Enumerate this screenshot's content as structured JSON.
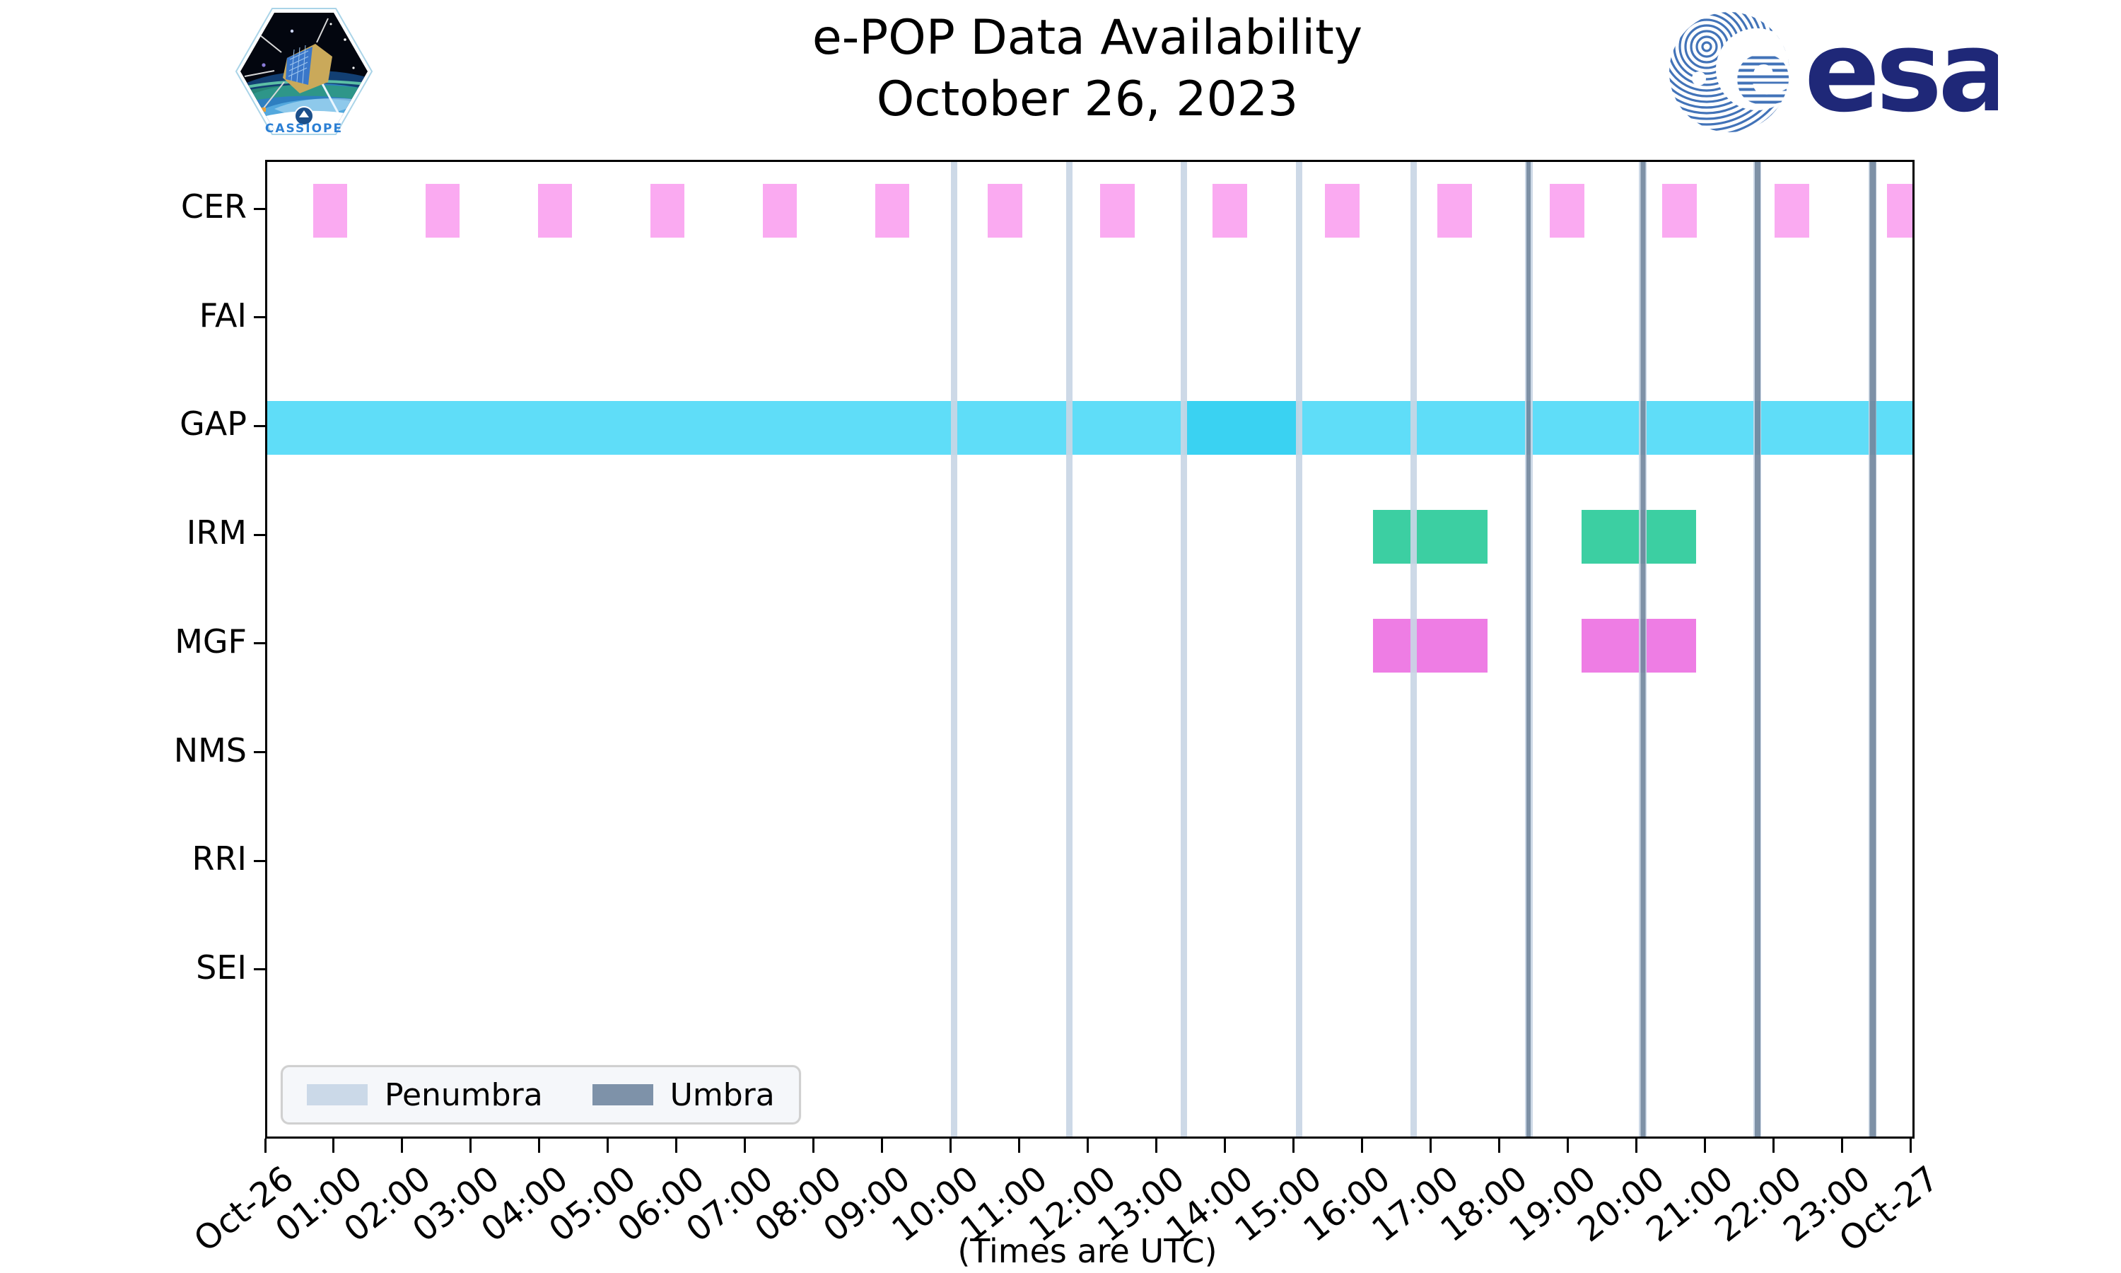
{
  "header": {
    "title": "e-POP Data Availability",
    "subtitle": "October 26, 2023"
  },
  "logos": {
    "cassiope_text": "CASSIOPE",
    "esa_text": "esa"
  },
  "footer": {
    "axis_note": "(Times are UTC)"
  },
  "chart_data": {
    "type": "bar",
    "variant": "gantt-availability-timeline",
    "title": "e-POP Data Availability",
    "subtitle": "October 26, 2023",
    "xlabel": "(Times are UTC)",
    "grid": "off",
    "legend_position": "lower-left-inside",
    "x_axis": {
      "start_hour": 0,
      "end_hour": 24,
      "tick_interval_hours": 1,
      "tick_labels": [
        "Oct-26",
        "01:00",
        "02:00",
        "03:00",
        "04:00",
        "05:00",
        "06:00",
        "07:00",
        "08:00",
        "09:00",
        "10:00",
        "11:00",
        "12:00",
        "13:00",
        "14:00",
        "15:00",
        "16:00",
        "17:00",
        "18:00",
        "19:00",
        "20:00",
        "21:00",
        "22:00",
        "23:00",
        "Oct-27"
      ]
    },
    "rows": [
      "CER",
      "FAI",
      "GAP",
      "IRM",
      "MGF",
      "NMS",
      "RRI",
      "SEI"
    ],
    "series": [
      {
        "name": "CER",
        "color": "#FAAAF1",
        "intervals": [
          [
            0.67,
            1.17
          ],
          [
            2.31,
            2.81
          ],
          [
            3.95,
            4.45
          ],
          [
            5.59,
            6.09
          ],
          [
            7.23,
            7.73
          ],
          [
            8.87,
            9.37
          ],
          [
            10.51,
            11.01
          ],
          [
            12.15,
            12.65
          ],
          [
            13.79,
            14.29
          ],
          [
            15.43,
            15.93
          ],
          [
            17.07,
            17.57
          ],
          [
            18.71,
            19.21
          ],
          [
            20.35,
            20.85
          ],
          [
            21.99,
            22.49
          ],
          [
            23.63,
            24.0
          ]
        ]
      },
      {
        "name": "FAI",
        "color": "#FAAAF1",
        "intervals": []
      },
      {
        "name": "GAP",
        "color": "#5FDDF8",
        "intervals": [
          [
            0,
            24
          ]
        ],
        "overlap_color": "#3AD2F2",
        "overlap_intervals": [
          [
            13.37,
            15.05
          ]
        ]
      },
      {
        "name": "IRM",
        "color": "#3CCFA2",
        "intervals": [
          [
            16.13,
            17.8
          ],
          [
            19.17,
            20.84
          ]
        ]
      },
      {
        "name": "MGF",
        "color": "#EE7DE4",
        "intervals": [
          [
            16.13,
            17.8
          ],
          [
            19.17,
            20.84
          ]
        ]
      },
      {
        "name": "NMS",
        "color": "#FAAAF1",
        "intervals": []
      },
      {
        "name": "RRI",
        "color": "#FAAAF1",
        "intervals": []
      },
      {
        "name": "SEI",
        "color": "#FAAAF1",
        "intervals": []
      }
    ],
    "eclipse_passes": [
      {
        "hour": 10.02,
        "time_utc": "10:01",
        "kind": "penumbra"
      },
      {
        "hour": 11.7,
        "time_utc": "11:42",
        "kind": "penumbra"
      },
      {
        "hour": 13.37,
        "time_utc": "13:22",
        "kind": "penumbra"
      },
      {
        "hour": 15.05,
        "time_utc": "15:03",
        "kind": "penumbra"
      },
      {
        "hour": 16.72,
        "time_utc": "16:43",
        "kind": "penumbra"
      },
      {
        "hour": 18.4,
        "time_utc": "18:24",
        "kind": "umbra",
        "umbra_fraction": 0.5
      },
      {
        "hour": 20.07,
        "time_utc": "20:04",
        "kind": "umbra",
        "umbra_fraction": 0.6
      },
      {
        "hour": 21.74,
        "time_utc": "21:44",
        "kind": "umbra",
        "umbra_fraction": 0.7
      },
      {
        "hour": 23.42,
        "time_utc": "23:25",
        "kind": "umbra",
        "umbra_fraction": 0.85
      }
    ],
    "colors": {
      "penumbra_line": "#C9D6E5",
      "umbra_line": "#74889F",
      "penumbra_swatch": "#CBD9E8",
      "umbra_swatch": "#7E92A9",
      "esa_navy": "#1F2878",
      "esa_stripe_blue": "#4273B8",
      "cassiope_blue": "#2B7FD4"
    },
    "legend": [
      {
        "label": "Penumbra",
        "color": "#CBD9E8"
      },
      {
        "label": "Umbra",
        "color": "#7E92A9"
      }
    ]
  }
}
